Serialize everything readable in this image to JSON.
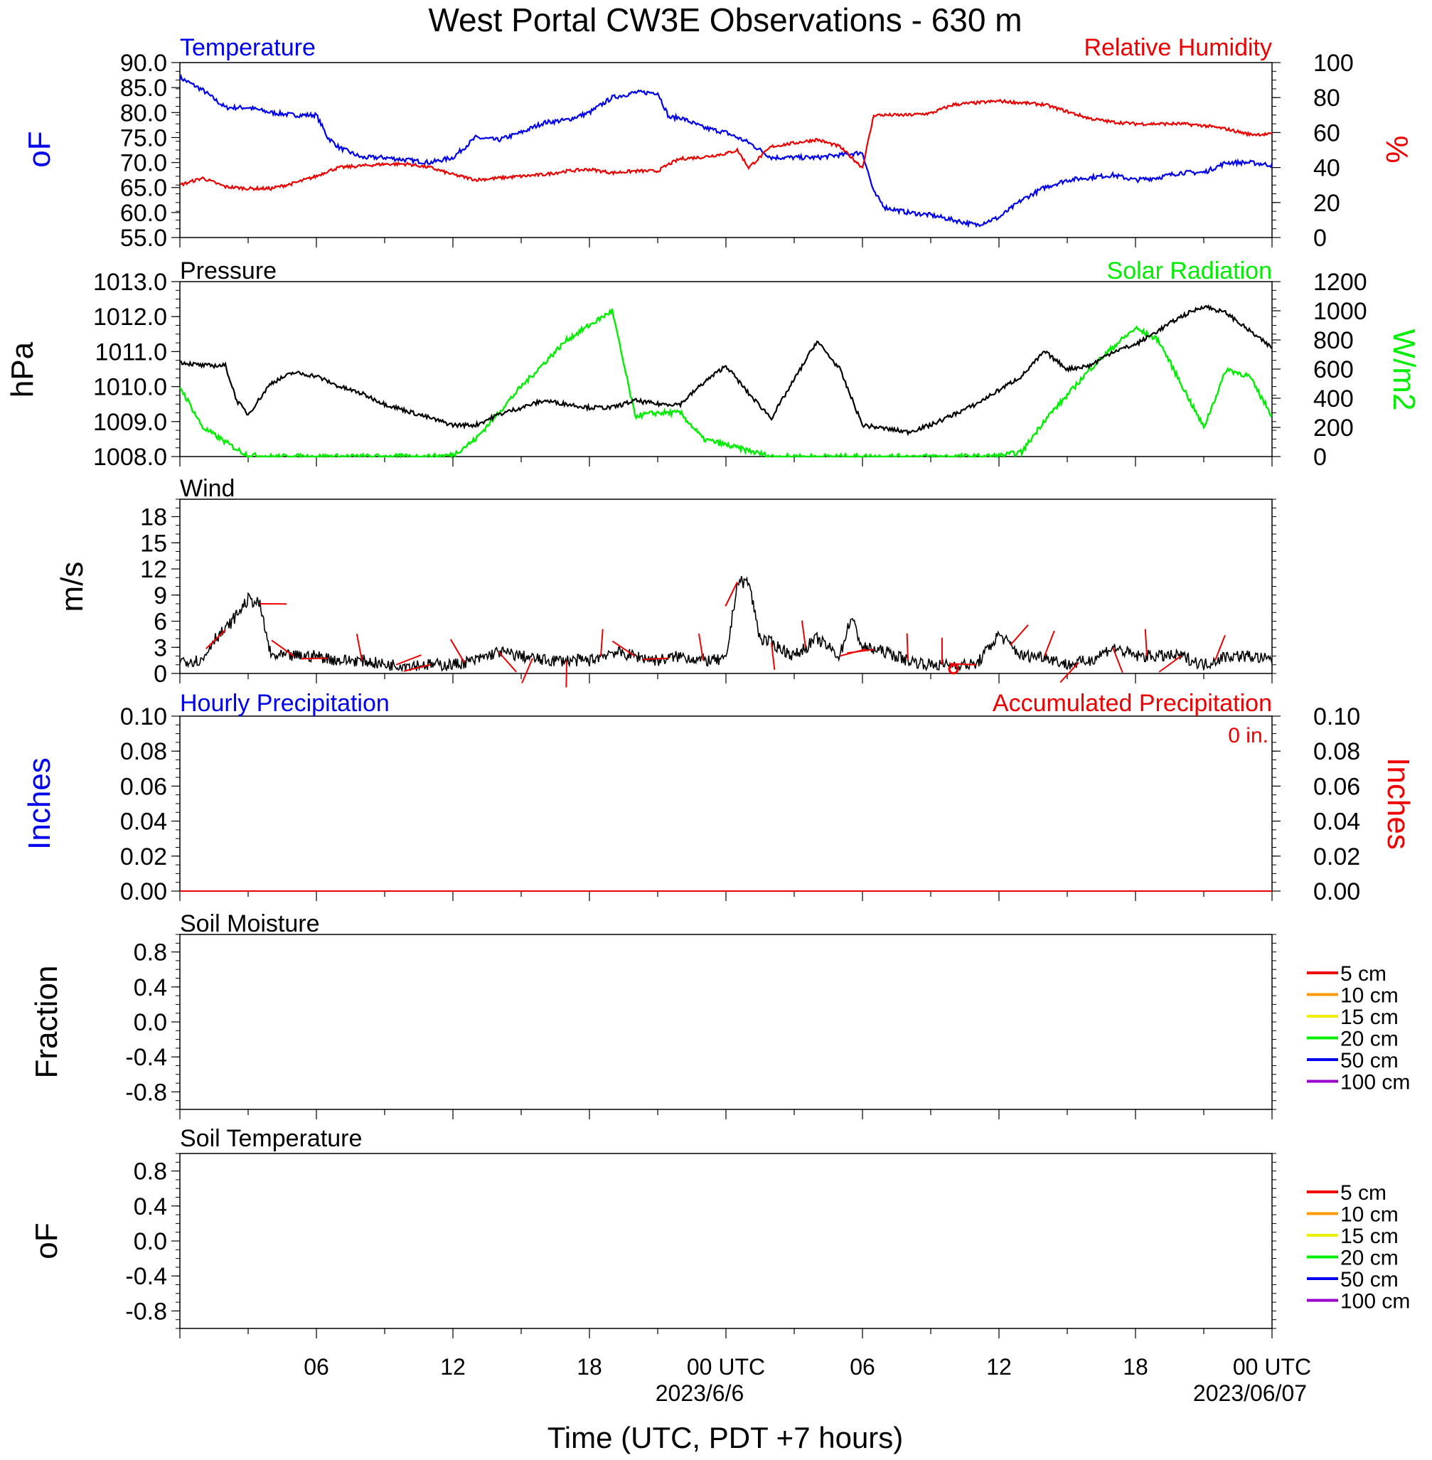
{
  "title": "West Portal CW3E Observations - 630 m",
  "xaxis": {
    "label": "Time (UTC, PDT +7 hours)",
    "ticks": [
      "06",
      "12",
      "18",
      "00 UTC",
      "06",
      "12",
      "18",
      "00 UTC"
    ],
    "dates": [
      "2023/6/6",
      "2023/06/07"
    ]
  },
  "colors": {
    "temperature": "#0000ee",
    "humidity": "#ee0000",
    "pressure": "#000000",
    "solar": "#00ee00",
    "wind": "#000000",
    "barbs": "#ee0000",
    "hourly_precip": "#0000ee",
    "accum_precip": "#ee0000"
  },
  "panels": {
    "temp_rh": {
      "left_title": "Temperature",
      "right_title": "Relative Humidity",
      "left_unit": "oF",
      "right_unit": "%",
      "left_ticks": [
        "90.0",
        "85.0",
        "80.0",
        "75.0",
        "70.0",
        "65.0",
        "60.0",
        "55.0"
      ],
      "right_ticks": [
        "100",
        "80",
        "60",
        "40",
        "20",
        "0"
      ]
    },
    "pressure_solar": {
      "left_title": "Pressure",
      "right_title": "Solar Radiation",
      "left_unit": "hPa",
      "right_unit": "W/m2",
      "left_ticks": [
        "1013.0",
        "1012.0",
        "1011.0",
        "1010.0",
        "1009.0",
        "1008.0"
      ],
      "right_ticks": [
        "1200",
        "1000",
        "800",
        "600",
        "400",
        "200",
        "0"
      ]
    },
    "wind": {
      "left_title": "Wind",
      "left_unit": "m/s",
      "left_ticks": [
        "18",
        "15",
        "12",
        "9",
        "6",
        "3",
        "0"
      ]
    },
    "precip": {
      "left_title": "Hourly Precipitation",
      "right_title": "Accumulated Precipitation",
      "right_note": "0 in.",
      "left_unit": "Inches",
      "right_unit": "Inches",
      "left_ticks": [
        "0.10",
        "0.08",
        "0.06",
        "0.04",
        "0.02",
        "0.00"
      ],
      "right_ticks": [
        "0.10",
        "0.08",
        "0.06",
        "0.04",
        "0.02",
        "0.00"
      ]
    },
    "soil_moisture": {
      "left_title": "Soil Moisture",
      "left_unit": "Fraction",
      "left_ticks": [
        "0.8",
        "0.4",
        "0.0",
        "-0.4",
        "-0.8"
      ],
      "legend": [
        "5 cm",
        "10 cm",
        "15 cm",
        "20 cm",
        "50 cm",
        "100 cm"
      ]
    },
    "soil_temp": {
      "left_title": "Soil Temperature",
      "left_unit": "oF",
      "left_ticks": [
        "0.8",
        "0.4",
        "0.0",
        "-0.4",
        "-0.8"
      ],
      "legend": [
        "5 cm",
        "10 cm",
        "15 cm",
        "20 cm",
        "50 cm",
        "100 cm"
      ]
    }
  },
  "legend_colors": [
    "#ee0000",
    "#ff9900",
    "#eeee00",
    "#00ee00",
    "#0000ee",
    "#9900cc"
  ],
  "chart_data": [
    {
      "type": "line",
      "x_hours_utc": [
        0,
        1,
        2,
        3,
        4,
        5,
        6,
        6.5,
        7,
        8,
        9,
        10,
        11,
        12,
        13,
        14,
        15,
        16,
        17,
        18,
        19,
        20,
        21,
        21.5,
        22,
        23,
        24,
        24.5,
        25,
        26,
        27,
        28,
        29,
        30,
        30.5,
        31,
        32,
        33,
        34,
        35,
        36,
        37,
        38,
        39,
        40,
        41,
        42,
        43,
        44,
        45,
        46,
        47,
        48
      ],
      "series": [
        {
          "name": "Temperature",
          "units": "oF",
          "axis": "left",
          "ylim": [
            55,
            90
          ],
          "values": [
            87,
            84.5,
            81,
            81,
            80,
            79.5,
            79.5,
            75,
            73,
            71,
            71,
            70.5,
            70,
            71,
            75,
            74.5,
            76,
            78,
            78.5,
            80,
            83,
            84,
            84,
            79,
            79,
            77,
            76,
            75,
            74,
            71,
            71,
            71,
            71.5,
            72,
            64,
            61,
            60,
            59.5,
            58.5,
            57.5,
            59,
            62.5,
            65,
            66.5,
            67,
            67.5,
            66.5,
            67,
            68,
            68,
            70,
            70,
            69.5
          ]
        },
        {
          "name": "Relative Humidity",
          "units": "%",
          "axis": "right",
          "ylim": [
            0,
            100
          ],
          "values": [
            30,
            34,
            29,
            28,
            28,
            31,
            35,
            38,
            40,
            41,
            42,
            42,
            40,
            36,
            33,
            34,
            35,
            36,
            38,
            39,
            37,
            38,
            38,
            42,
            45,
            46,
            48,
            50,
            40,
            52,
            54,
            56,
            52,
            40,
            70,
            70,
            70,
            71,
            76,
            77,
            78,
            77,
            76,
            72,
            68,
            66,
            65,
            65,
            65,
            64,
            62,
            59,
            59
          ]
        }
      ]
    },
    {
      "type": "line",
      "x_hours_utc": [
        0,
        1,
        2,
        2.5,
        3,
        4,
        5,
        6,
        7,
        8,
        9,
        10,
        11,
        12,
        13,
        14,
        15,
        16,
        17,
        18,
        19,
        20,
        21,
        22,
        23,
        24,
        25,
        26,
        27,
        28,
        29,
        30,
        31,
        32,
        33,
        34,
        35,
        36,
        37,
        38,
        39,
        40,
        41,
        42,
        43,
        44,
        45,
        46,
        47,
        48
      ],
      "series": [
        {
          "name": "Pressure",
          "units": "hPa",
          "axis": "left",
          "ylim": [
            1008,
            1013
          ],
          "values": [
            1010.7,
            1010.6,
            1010.6,
            1009.6,
            1009.2,
            1010.1,
            1010.4,
            1010.3,
            1010.0,
            1009.8,
            1009.5,
            1009.3,
            1009.1,
            1008.9,
            1008.9,
            1009.2,
            1009.4,
            1009.6,
            1009.5,
            1009.4,
            1009.4,
            1009.6,
            1009.5,
            1009.5,
            1010.1,
            1010.6,
            1009.8,
            1009.1,
            1010.2,
            1011.3,
            1010.5,
            1008.9,
            1008.8,
            1008.7,
            1008.9,
            1009.2,
            1009.5,
            1009.9,
            1010.3,
            1011.0,
            1010.5,
            1010.6,
            1011.0,
            1011.2,
            1011.6,
            1012.0,
            1012.3,
            1012.1,
            1011.6,
            1011.1
          ]
        },
        {
          "name": "Solar Radiation",
          "units": "W/m2",
          "axis": "right",
          "ylim": [
            0,
            1200
          ],
          "values": [
            480,
            200,
            100,
            50,
            10,
            0,
            0,
            0,
            0,
            0,
            0,
            0,
            0,
            10,
            120,
            300,
            480,
            640,
            800,
            900,
            1000,
            280,
            300,
            300,
            120,
            80,
            40,
            0,
            0,
            0,
            0,
            0,
            0,
            0,
            0,
            0,
            0,
            5,
            30,
            250,
            420,
            600,
            750,
            880,
            800,
            500,
            200,
            600,
            550,
            280
          ]
        }
      ]
    },
    {
      "type": "line",
      "x_hours_utc": [
        0,
        1,
        1.5,
        2,
        3,
        3.5,
        4,
        5,
        6,
        7,
        8,
        9,
        10,
        11,
        12,
        13,
        14,
        15,
        16,
        17,
        18,
        19,
        20,
        21,
        22,
        23,
        24,
        24.5,
        25,
        25.5,
        26,
        27,
        28,
        29,
        29.5,
        30,
        31,
        32,
        33,
        34,
        35,
        36,
        37,
        38,
        39,
        40,
        41,
        42,
        43,
        44,
        45,
        46,
        47,
        48
      ],
      "series": [
        {
          "name": "Wind Speed",
          "units": "m/s",
          "axis": "left",
          "ylim": [
            0,
            20
          ],
          "values": [
            1.5,
            1.5,
            4,
            5,
            8.5,
            8,
            2,
            2,
            2,
            1.5,
            1.5,
            1,
            1,
            1,
            1,
            1.5,
            2.5,
            2,
            1.5,
            1.5,
            1.5,
            2.5,
            2,
            1.5,
            2,
            1.5,
            1.5,
            10.5,
            10.5,
            4,
            3.5,
            2,
            4,
            2,
            6.5,
            3,
            2.5,
            1.5,
            1,
            1,
            1,
            4.5,
            2,
            2,
            1,
            1.5,
            3,
            2,
            2,
            2,
            1,
            2,
            2,
            1.5
          ]
        }
      ]
    },
    {
      "type": "line",
      "x_hours_utc": [
        0,
        48
      ],
      "series": [
        {
          "name": "Hourly Precipitation",
          "units": "Inches",
          "axis": "left",
          "ylim": [
            0,
            0.1
          ],
          "values": [
            0,
            0
          ]
        },
        {
          "name": "Accumulated Precipitation",
          "units": "Inches",
          "axis": "right",
          "ylim": [
            0,
            0.1
          ],
          "values": [
            0,
            0
          ]
        }
      ]
    },
    {
      "type": "line",
      "series": [],
      "ylim": [
        -1,
        1
      ],
      "legend": [
        "5 cm",
        "10 cm",
        "15 cm",
        "20 cm",
        "50 cm",
        "100 cm"
      ]
    },
    {
      "type": "line",
      "series": [],
      "ylim": [
        -1,
        1
      ],
      "legend": [
        "5 cm",
        "10 cm",
        "15 cm",
        "20 cm",
        "50 cm",
        "100 cm"
      ]
    }
  ]
}
